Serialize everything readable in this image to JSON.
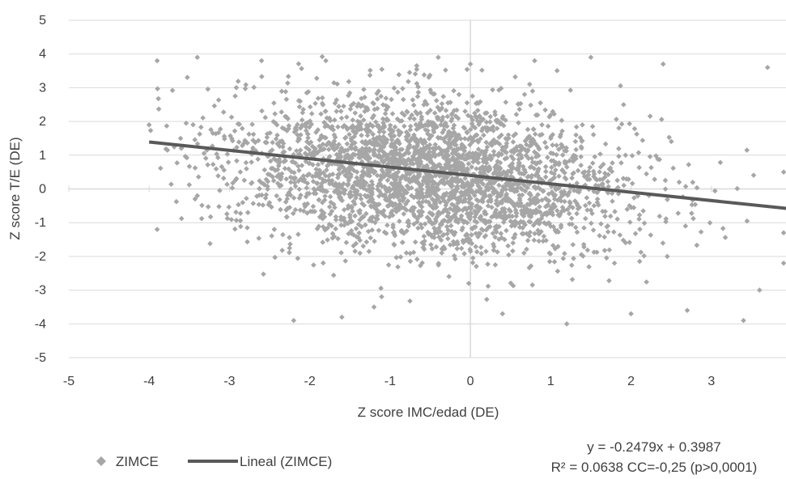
{
  "chart_data": {
    "type": "scatter",
    "xlabel": "Z score IMC/edad (DE)",
    "ylabel": "Z score T/E (DE)",
    "xlim": [
      -5,
      4
    ],
    "ylim": [
      -5,
      5
    ],
    "x_ticks": [
      "-5",
      "-4",
      "-3",
      "-2",
      "-1",
      "0",
      "1",
      "2",
      "3",
      "4"
    ],
    "y_ticks": [
      "5",
      "4",
      "3",
      "2",
      "1",
      "0",
      "-1",
      "-2",
      "-3",
      "-4",
      "-5"
    ],
    "grid": "horizontal",
    "colors": {
      "points": "#a6a6a6",
      "trendline": "#595959",
      "grid": "#d9d9d9",
      "axis": "#d9d9d9",
      "text": "#404040"
    },
    "series": [
      {
        "name": "ZIMCE",
        "marker": "diamond",
        "point_count": 3000,
        "x_range": [
          -4,
          4
        ],
        "y_range": [
          -4,
          4
        ],
        "x_center": -0.5,
        "y_center": 0.4,
        "sample_points": [
          [
            -3.9,
            3.8
          ],
          [
            -3.4,
            3.9
          ],
          [
            -2.6,
            3.8
          ],
          [
            -1.8,
            3.8
          ],
          [
            -0.4,
            3.9
          ],
          [
            0.0,
            3.7
          ],
          [
            0.8,
            3.8
          ],
          [
            1.5,
            3.9
          ],
          [
            2.4,
            3.7
          ],
          [
            3.7,
            3.6
          ],
          [
            -4.0,
            1.9
          ],
          [
            -3.9,
            -1.2
          ],
          [
            -2.2,
            -3.9
          ],
          [
            -1.6,
            -3.8
          ],
          [
            -1.2,
            -3.5
          ],
          [
            0.4,
            -3.7
          ],
          [
            1.2,
            -4.0
          ],
          [
            2.0,
            -3.7
          ],
          [
            2.7,
            -3.6
          ],
          [
            3.4,
            -3.9
          ],
          [
            3.9,
            -1.3
          ],
          [
            3.9,
            -2.2
          ],
          [
            3.9,
            0.5
          ],
          [
            3.6,
            -3.0
          ],
          [
            -0.9,
            0.5
          ],
          [
            -0.5,
            0.8
          ],
          [
            0.2,
            0.3
          ],
          [
            -1.3,
            1.2
          ],
          [
            -0.2,
            -0.5
          ],
          [
            1.0,
            1.5
          ]
        ]
      },
      {
        "name": "Lineal (ZIMCE)",
        "type": "line",
        "x": [
          -4,
          4
        ],
        "y": [
          1.3903,
          -0.5929
        ],
        "slope": -0.2479,
        "intercept": 0.3987
      }
    ],
    "legend": {
      "position": "bottom-left",
      "items": [
        "ZIMCE",
        "Lineal (ZIMCE)"
      ]
    },
    "annotation": {
      "line1": "y = -0.2479x + 0.3987",
      "line2": "R² = 0.0638 CC=-0,25 (p>0,0001)"
    }
  }
}
